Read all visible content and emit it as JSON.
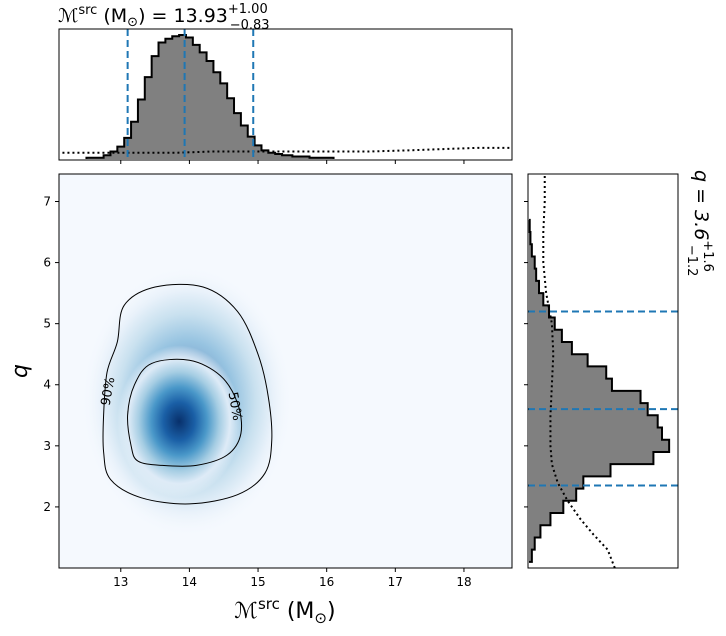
{
  "chart_data": [
    {
      "panel": "marginal-top",
      "type": "histogram",
      "title_main": "ℳ",
      "title_sup": "src",
      "title_unit": " (M",
      "title_unit_sub": "⊙",
      "title_eq": ") = 13.93",
      "title_plus": "+1.00",
      "title_minus": "−0.83",
      "xlim": [
        12.1,
        18.7
      ],
      "bin_edges": [
        12.5,
        12.75,
        12.85,
        12.95,
        13.05,
        13.15,
        13.25,
        13.35,
        13.45,
        13.55,
        13.65,
        13.75,
        13.85,
        13.95,
        14.05,
        14.15,
        14.25,
        14.35,
        14.45,
        14.55,
        14.65,
        14.75,
        14.85,
        14.95,
        15.05,
        15.15,
        15.25,
        15.35,
        15.5,
        15.75,
        16.1
      ],
      "counts": [
        0.01,
        0.03,
        0.06,
        0.1,
        0.17,
        0.3,
        0.48,
        0.66,
        0.83,
        0.94,
        0.97,
        0.99,
        1.0,
        0.98,
        0.92,
        0.86,
        0.79,
        0.7,
        0.61,
        0.49,
        0.37,
        0.27,
        0.18,
        0.11,
        0.07,
        0.05,
        0.04,
        0.03,
        0.02,
        0.01
      ],
      "prior_x": [
        12.15,
        12.6,
        13.2,
        13.8,
        14.3,
        14.8,
        15.4,
        16.0,
        16.6,
        17.2,
        17.7,
        18.2,
        18.7
      ],
      "prior_y": [
        0.05,
        0.05,
        0.05,
        0.05,
        0.06,
        0.06,
        0.06,
        0.06,
        0.06,
        0.07,
        0.08,
        0.09,
        0.09
      ],
      "quantile_lines": [
        13.1,
        13.93,
        14.93
      ]
    },
    {
      "panel": "joint",
      "type": "heatmap",
      "xlabel_main": "ℳ",
      "xlabel_sup": "src",
      "xlabel_unit": " (M",
      "xlabel_unit_sub": "⊙",
      "xlabel_close": ")",
      "ylabel": "q",
      "xlim": [
        12.1,
        18.7
      ],
      "ylim": [
        1.0,
        7.45
      ],
      "xticks": [
        "13",
        "14",
        "15",
        "16",
        "17",
        "18"
      ],
      "xtick_values": [
        13,
        14,
        15,
        16,
        17,
        18
      ],
      "yticks": [
        "2",
        "3",
        "4",
        "5",
        "6",
        "7"
      ],
      "ytick_values": [
        2,
        3,
        4,
        5,
        6,
        7
      ],
      "density_peak": {
        "x": 13.85,
        "y": 3.4
      },
      "contour_levels": [
        "50%",
        "90%"
      ],
      "contour_50": [
        [
          13.25,
          2.75
        ],
        [
          13.6,
          2.68
        ],
        [
          14.1,
          2.68
        ],
        [
          14.55,
          2.85
        ],
        [
          14.75,
          3.2
        ],
        [
          14.7,
          3.7
        ],
        [
          14.45,
          4.15
        ],
        [
          14.0,
          4.4
        ],
        [
          13.45,
          4.35
        ],
        [
          13.2,
          4.0
        ],
        [
          13.1,
          3.5
        ],
        [
          13.15,
          3.0
        ]
      ],
      "contour_90": [
        [
          12.85,
          2.45
        ],
        [
          13.3,
          2.15
        ],
        [
          14.0,
          2.05
        ],
        [
          14.7,
          2.2
        ],
        [
          15.1,
          2.55
        ],
        [
          15.2,
          3.1
        ],
        [
          15.15,
          3.8
        ],
        [
          15.0,
          4.5
        ],
        [
          14.7,
          5.2
        ],
        [
          14.2,
          5.6
        ],
        [
          13.5,
          5.6
        ],
        [
          13.05,
          5.3
        ],
        [
          12.95,
          4.7
        ],
        [
          12.8,
          4.2
        ],
        [
          12.75,
          3.5
        ],
        [
          12.75,
          2.9
        ]
      ]
    },
    {
      "panel": "marginal-right",
      "type": "histogram",
      "orientation": "horizontal",
      "title_main": "q = 3.6",
      "title_plus": "+1.6",
      "title_minus": "−1.2",
      "ylim": [
        1.0,
        7.45
      ],
      "bin_edges": [
        1.1,
        1.3,
        1.5,
        1.7,
        1.9,
        2.1,
        2.3,
        2.5,
        2.7,
        2.9,
        3.1,
        3.3,
        3.5,
        3.7,
        3.9,
        4.1,
        4.3,
        4.5,
        4.7,
        4.9,
        5.1,
        5.3,
        5.5,
        5.7,
        5.9,
        6.1,
        6.3,
        6.5,
        6.7
      ],
      "counts": [
        0.02,
        0.04,
        0.08,
        0.15,
        0.24,
        0.33,
        0.38,
        0.57,
        0.87,
        0.98,
        0.93,
        0.9,
        0.83,
        0.78,
        0.58,
        0.54,
        0.41,
        0.3,
        0.23,
        0.18,
        0.14,
        0.1,
        0.07,
        0.05,
        0.04,
        0.02,
        0.01,
        0.005
      ],
      "prior_y": [
        1.0,
        1.3,
        1.55,
        1.8,
        2.1,
        2.4,
        2.7,
        3.0,
        3.5,
        4.0,
        4.5,
        5.0,
        5.5,
        6.0,
        6.5,
        7.0,
        7.45
      ],
      "prior_x": [
        0.6,
        0.55,
        0.45,
        0.36,
        0.27,
        0.2,
        0.16,
        0.15,
        0.15,
        0.16,
        0.17,
        0.16,
        0.12,
        0.1,
        0.1,
        0.11,
        0.11
      ],
      "quantile_lines": [
        2.35,
        3.6,
        5.2
      ]
    }
  ]
}
